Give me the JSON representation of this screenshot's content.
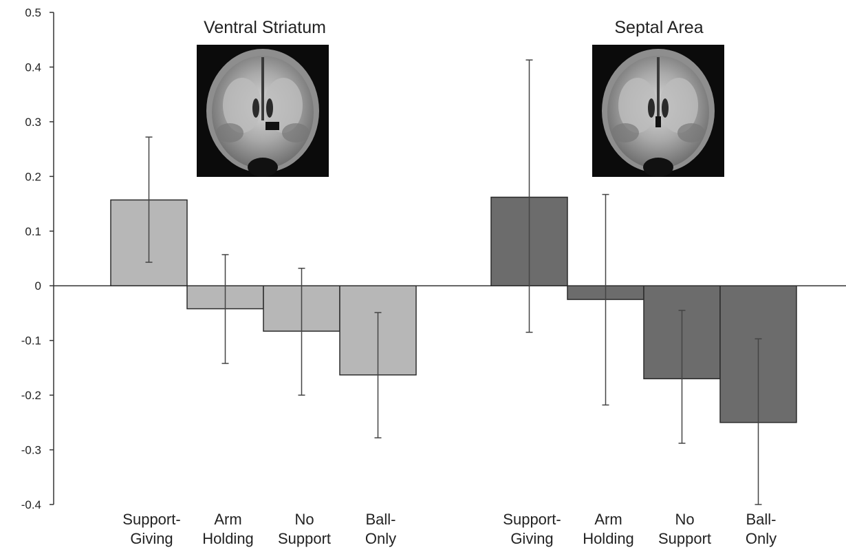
{
  "chart_data": {
    "type": "bar",
    "ylim": [
      -0.4,
      0.5
    ],
    "yticks": [
      "0.5",
      "0.4",
      "0.3",
      "0.2",
      "0.1",
      "0",
      "-0.1",
      "-0.2",
      "-0.3",
      "-0.4"
    ],
    "ytick_values": [
      0.5,
      0.4,
      0.3,
      0.2,
      0.1,
      0,
      -0.1,
      -0.2,
      -0.3,
      -0.4
    ],
    "grid": false,
    "legend": "none",
    "groups": [
      {
        "title": "Ventral Striatum",
        "color": "#b7b7b7",
        "image_icon": "brain-coronal-scan-ventral-striatum",
        "bars": [
          {
            "label_lines": [
              "Support-",
              "Giving"
            ],
            "value": 0.157,
            "err_low": 0.043,
            "err_high": 0.272
          },
          {
            "label_lines": [
              "Arm",
              "Holding"
            ],
            "value": -0.042,
            "err_low": -0.142,
            "err_high": 0.057
          },
          {
            "label_lines": [
              "No",
              "Support"
            ],
            "value": -0.083,
            "err_low": -0.2,
            "err_high": 0.032
          },
          {
            "label_lines": [
              "Ball-",
              "Only"
            ],
            "value": -0.163,
            "err_low": -0.278,
            "err_high": -0.049
          }
        ]
      },
      {
        "title": "Septal Area",
        "color": "#6c6c6c",
        "image_icon": "brain-coronal-scan-septal-area",
        "bars": [
          {
            "label_lines": [
              "Support-",
              "Giving"
            ],
            "value": 0.162,
            "err_low": -0.085,
            "err_high": 0.413
          },
          {
            "label_lines": [
              "Arm",
              "Holding"
            ],
            "value": -0.025,
            "err_low": -0.218,
            "err_high": 0.167
          },
          {
            "label_lines": [
              "No",
              "Support"
            ],
            "value": -0.17,
            "err_low": -0.288,
            "err_high": -0.045
          },
          {
            "label_lines": [
              "Ball-",
              "Only"
            ],
            "value": -0.25,
            "err_low": -0.4,
            "err_high": -0.097
          }
        ]
      }
    ]
  }
}
